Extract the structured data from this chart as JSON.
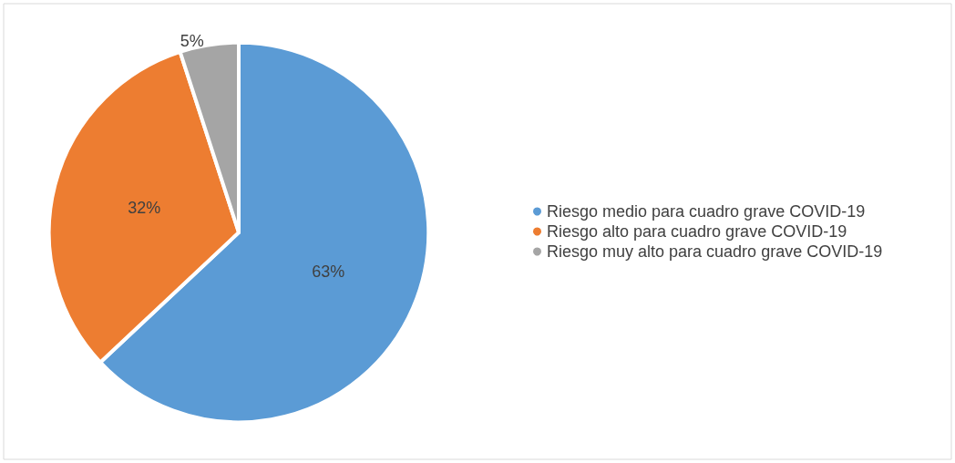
{
  "chart_data": {
    "type": "pie",
    "categories": [
      "Riesgo medio para cuadro grave COVID-19",
      "Riesgo alto para cuadro grave COVID-19",
      "Riesgo muy alto para cuadro grave COVID-19"
    ],
    "values": [
      63,
      32,
      5
    ],
    "colors": [
      "#5b9bd5",
      "#ed7d31",
      "#a5a5a5"
    ],
    "value_labels": [
      "63%",
      "32%",
      "5%"
    ],
    "legend": "right"
  }
}
